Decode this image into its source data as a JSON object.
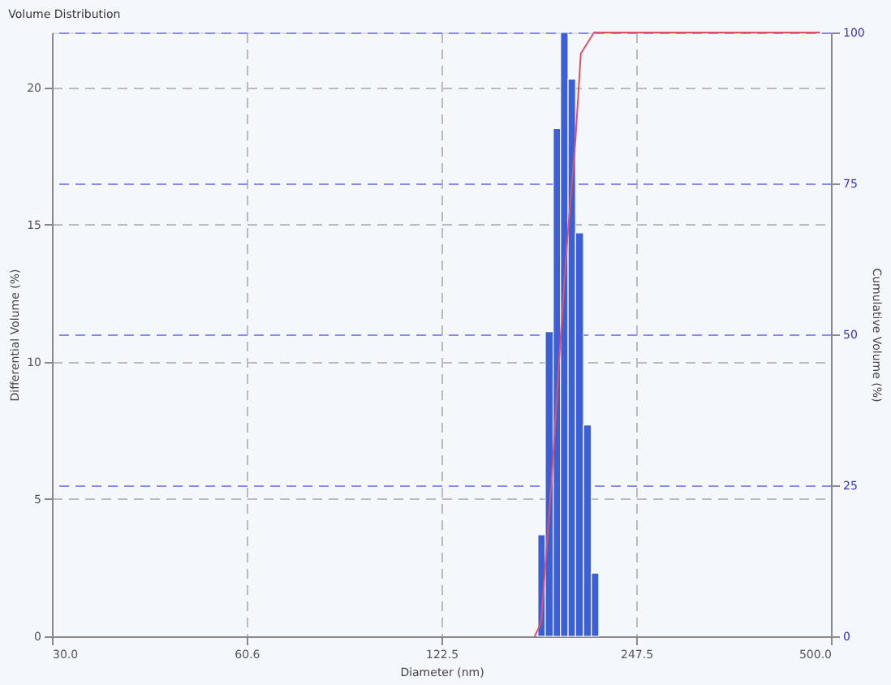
{
  "chart_data": {
    "type": "histogram",
    "title": "Volume Distribution",
    "xlabel": "Diameter (nm)",
    "ylabel": "Differential Volume (%)",
    "y2label": "Cumulative Volume (%)",
    "bins": [
      173.5,
      178.2,
      183.4,
      188.3,
      193.5,
      198.8,
      204.6,
      210.5,
      216.2
    ],
    "values": [
      3.7,
      11.1,
      18.5,
      22,
      20.3,
      14.7,
      7.7,
      2.3
    ],
    "color": "#3a5fd6",
    "series": [
      {
        "type": "line",
        "axis": "y2",
        "color": "#e0506a",
        "x": [
          171.5,
          175.5,
          182.4,
          188.1,
          192.4,
          198.8,
          202.6,
          212.5,
          480.2
        ],
        "values": [
          0,
          2.2,
          26,
          48.6,
          64,
          82.5,
          96.5,
          100,
          100
        ]
      }
    ],
    "log": "x",
    "xlim": [
      30,
      500
    ],
    "xticks": [
      {
        "value": 30,
        "label": "30.0"
      },
      {
        "value": 60.6,
        "label": "60.6"
      },
      {
        "value": 122.5,
        "label": "122.5"
      },
      {
        "value": 247.5,
        "label": "247.5"
      },
      {
        "value": 500,
        "label": "500.0"
      }
    ],
    "ylim": [
      0,
      22
    ],
    "yticks": [
      0,
      5,
      10,
      15,
      20
    ],
    "y2lim": [
      0,
      100
    ],
    "y2ticks": [
      0,
      25,
      50,
      75,
      100
    ],
    "grid": true,
    "line_style": "solid",
    "marker": "none"
  }
}
